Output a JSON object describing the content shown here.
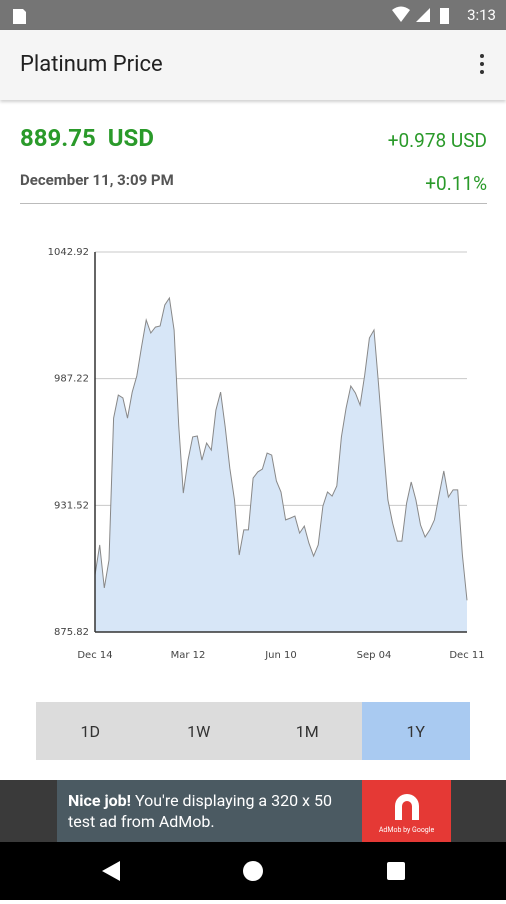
{
  "status_bar": {
    "time": "3:13"
  },
  "app_bar": {
    "title": "Platinum Price"
  },
  "quote": {
    "price": "889.75  USD",
    "change": "+0.978 USD",
    "date": "December 11, 3:09 PM",
    "percent": "+0.11%"
  },
  "chart_data": {
    "type": "line",
    "categories": [
      "Dec 14",
      null,
      null,
      null,
      null,
      null,
      null,
      null,
      null,
      null,
      null,
      null,
      null,
      null,
      null,
      null,
      null,
      null,
      null,
      null,
      "Mar 12",
      null,
      null,
      null,
      null,
      null,
      null,
      null,
      null,
      null,
      null,
      null,
      null,
      null,
      null,
      null,
      null,
      null,
      null,
      null,
      "Jun 10",
      null,
      null,
      null,
      null,
      null,
      null,
      null,
      null,
      null,
      null,
      null,
      null,
      null,
      null,
      null,
      null,
      null,
      null,
      null,
      "Sep 04",
      null,
      null,
      null,
      null,
      null,
      null,
      null,
      null,
      null,
      null,
      null,
      null,
      null,
      null,
      null,
      null,
      null,
      null,
      null,
      "Dec 11"
    ],
    "values": [
      900.9,
      914.1,
      895.2,
      907.5,
      969.9,
      980.0,
      978.7,
      969.9,
      981.3,
      988.4,
      1001.1,
      1013.0,
      1007.3,
      1009.9,
      1010.4,
      1019.6,
      1022.7,
      1008.6,
      966.8,
      936.9,
      951.4,
      961.6,
      962.0,
      951.4,
      958.9,
      955.8,
      973.4,
      981.3,
      966.0,
      947.9,
      933.9,
      909.7,
      920.7,
      920.7,
      943.5,
      946.2,
      947.5,
      954.5,
      953.6,
      942.2,
      937.4,
      925.1,
      925.9,
      926.8,
      919.3,
      922.4,
      914.9,
      909.2,
      914.1,
      931.2,
      937.4,
      935.6,
      940.0,
      961.6,
      974.3,
      984.0,
      980.9,
      975.6,
      988.8,
      1005.1,
      1008.6,
      984.4,
      958.0,
      933.9,
      923.7,
      915.8,
      915.8,
      932.5,
      941.8,
      933.9,
      922.9,
      917.6,
      920.7,
      925.1,
      936.1,
      946.6,
      935.2,
      938.3,
      938.3,
      909.7,
      889.75
    ],
    "color": "#888888",
    "fill": "#d7e6f7",
    "ylim": [
      875.82,
      1042.92
    ],
    "yticks": [
      875.82,
      931.52,
      987.22,
      1042.92
    ],
    "grid": true
  },
  "range_buttons": {
    "options": [
      "1D",
      "1W",
      "1M",
      "1Y"
    ],
    "selected": 3
  },
  "ad": {
    "headline": "Nice job!",
    "text": "You're displaying a 320 x 50 test ad from AdMob.",
    "logo": "AdMob by Google"
  }
}
